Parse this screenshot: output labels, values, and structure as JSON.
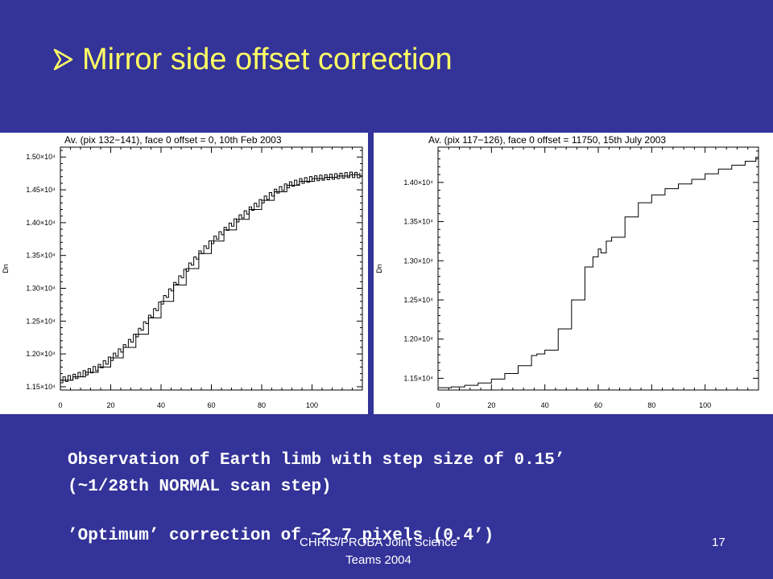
{
  "title": "Mirror side offset correction",
  "body": {
    "line1": "Observation of Earth limb with step size of 0.15’",
    "line2": "(~1/28th NORMAL scan step)",
    "line3": "’Optimum’ correction of ~2.7 pixels (0.4’)"
  },
  "footer": {
    "center_line1": "CHRIS/PROBA Joint Science",
    "center_line2": "Teams 2004",
    "page": "17"
  },
  "colors": {
    "background": "#333399",
    "title": "#ffff66",
    "body": "#ffffff"
  },
  "chart_data": [
    {
      "type": "line",
      "title": "Av. (pix 132−141), face 0 offset = 0, 10th Feb 2003",
      "ylabel": "Dn",
      "xlabel": "",
      "xlim": [
        0,
        120
      ],
      "ylim": [
        11450,
        15150
      ],
      "xticks": [
        "0",
        "20",
        "40",
        "60",
        "80",
        "100"
      ],
      "yticks": [
        "1.15×10⁴",
        "1.20×10⁴",
        "1.25×10⁴",
        "1.30×10⁴",
        "1.35×10⁴",
        "1.40×10⁴",
        "1.45×10⁴",
        "1.50×10⁴"
      ],
      "ytick_values": [
        11500,
        12000,
        12500,
        13000,
        13500,
        14000,
        14500,
        15000
      ],
      "style": "step",
      "x": [
        0,
        5,
        10,
        15,
        20,
        25,
        30,
        35,
        40,
        45,
        50,
        55,
        60,
        65,
        70,
        75,
        80,
        85,
        90,
        95,
        100,
        105,
        110,
        115,
        119
      ],
      "values": [
        11600,
        11650,
        11720,
        11800,
        11940,
        12100,
        12300,
        12550,
        12800,
        13050,
        13300,
        13530,
        13720,
        13890,
        14050,
        14200,
        14340,
        14470,
        14570,
        14630,
        14670,
        14690,
        14710,
        14730,
        14720
      ]
    },
    {
      "type": "line",
      "title": "Av. (pix 117−126), face 0 offset = 11750, 15th July 2003",
      "ylabel": "Dn",
      "xlabel": "",
      "xlim": [
        0,
        120
      ],
      "ylim": [
        11350,
        14450
      ],
      "xticks": [
        "0",
        "20",
        "40",
        "60",
        "80",
        "100"
      ],
      "yticks": [
        "1.15×10⁴",
        "1.20×10⁴",
        "1.25×10⁴",
        "1.30×10⁴",
        "1.35×10⁴",
        "1.40×10⁴"
      ],
      "ytick_values": [
        11500,
        12000,
        12500,
        13000,
        13500,
        14000
      ],
      "style": "step",
      "x": [
        0,
        5,
        10,
        15,
        20,
        25,
        30,
        35,
        37,
        40,
        45,
        50,
        55,
        58,
        60,
        61,
        63,
        65,
        70,
        75,
        80,
        85,
        90,
        95,
        100,
        105,
        110,
        115,
        119
      ],
      "values": [
        11380,
        11390,
        11410,
        11440,
        11490,
        11560,
        11660,
        11790,
        11810,
        11860,
        12130,
        12500,
        12920,
        13050,
        13150,
        13100,
        13250,
        13300,
        13560,
        13740,
        13840,
        13920,
        13980,
        14040,
        14110,
        14170,
        14220,
        14270,
        14320
      ]
    }
  ]
}
